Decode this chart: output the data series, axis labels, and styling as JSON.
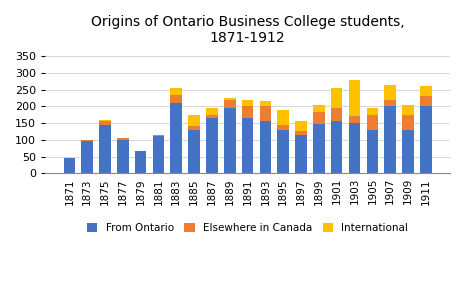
{
  "title": "Origins of Ontario Business College students,\n1871-1912",
  "years": [
    1871,
    1873,
    1875,
    1877,
    1879,
    1881,
    1883,
    1885,
    1887,
    1889,
    1891,
    1893,
    1895,
    1897,
    1899,
    1901,
    1903,
    1905,
    1907,
    1909,
    1911
  ],
  "ontario": [
    45,
    95,
    145,
    100,
    65,
    110,
    210,
    130,
    165,
    195,
    165,
    155,
    130,
    115,
    148,
    155,
    150,
    130,
    200,
    130,
    200
  ],
  "elsewhere": [
    0,
    5,
    10,
    5,
    0,
    5,
    25,
    10,
    10,
    25,
    35,
    45,
    15,
    10,
    35,
    40,
    20,
    45,
    20,
    45,
    30
  ],
  "international": [
    0,
    0,
    5,
    0,
    0,
    0,
    20,
    35,
    20,
    5,
    20,
    15,
    45,
    30,
    20,
    60,
    110,
    20,
    45,
    30,
    30
  ],
  "color_ontario": "#4472C4",
  "color_elsewhere": "#ED7D31",
  "color_international": "#FFC000",
  "ylim": [
    0,
    375
  ],
  "yticks": [
    0,
    50,
    100,
    150,
    200,
    250,
    300,
    350
  ],
  "figsize": [
    4.65,
    3.01
  ],
  "dpi": 100
}
